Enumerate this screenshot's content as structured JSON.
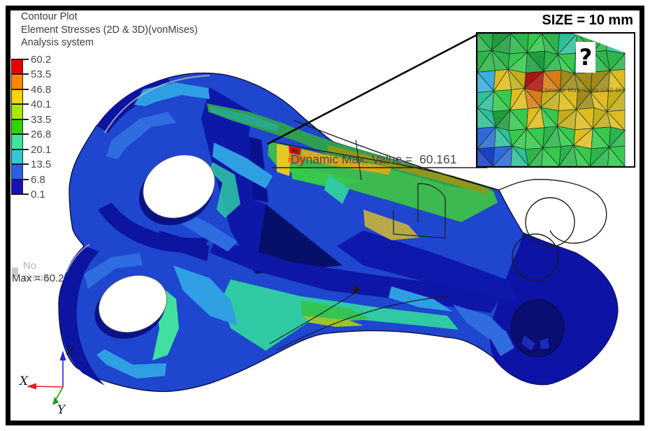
{
  "header": {
    "title": "Contour Plot",
    "subtitle": "Element Stresses (2D & 3D)(vonMises)",
    "system": "Analysis system"
  },
  "legend": {
    "ticks": [
      "60.2",
      "53.5",
      "46.8",
      "40.1",
      "33.5",
      "26.8",
      "20.1",
      "13.5",
      "6.8",
      "0.1"
    ],
    "band_colors": [
      "#e80000",
      "#ff8700",
      "#ffd300",
      "#a8e800",
      "#2fd500",
      "#3ce6a0",
      "#30c8dc",
      "#2b5fe6",
      "#1511b8"
    ],
    "no_result": {
      "label": "No result",
      "swatch_color": "#c9c9c9"
    },
    "max_label": "Max = 60.2"
  },
  "size_label": "SIZE = 10 mm",
  "annotation": {
    "label": "Dynamic Max. Value =  60.161"
  },
  "inset": {
    "question_mark": "?",
    "overlay_label": "Dynamic Max. Value = 60.161"
  },
  "triad": {
    "x_label": "X",
    "y_label": "Y",
    "z_label": "Z",
    "x_color": "#e02020",
    "y_color": "#18a018",
    "z_color": "#2424d8"
  }
}
